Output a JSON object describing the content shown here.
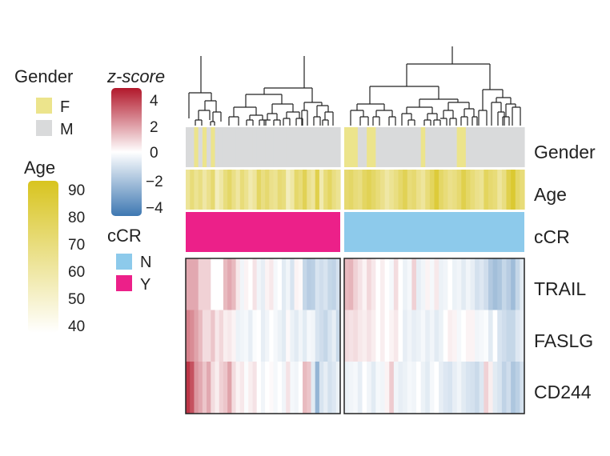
{
  "chart_data": {
    "type": "heatmap",
    "groups": [
      {
        "name": "Y",
        "n": 37
      },
      {
        "name": "N",
        "n": 40
      }
    ],
    "annotation_rows": [
      "Gender",
      "Age",
      "cCR"
    ],
    "gene_rows": [
      "TRAIL",
      "FASLG",
      "CD244"
    ],
    "legends": {
      "gender": {
        "title": "Gender",
        "items": [
          {
            "label": "F",
            "color": "#ECE48C"
          },
          {
            "label": "M",
            "color": "#D9DADB"
          }
        ]
      },
      "zscore": {
        "title": "z-score",
        "ticks": [
          "4",
          "2",
          "0",
          "−2",
          "−4"
        ],
        "range": [
          -4,
          4
        ],
        "colors": {
          "high": "#B2182B",
          "mid": "#FFFFFF",
          "low": "#3E78B2"
        }
      },
      "age": {
        "title": "Age",
        "ticks": [
          "90",
          "80",
          "70",
          "60",
          "50",
          "40"
        ],
        "range": [
          40,
          90
        ],
        "colors": {
          "high": "#D8C41F",
          "low": "#FFFFFF"
        }
      },
      "ccr": {
        "title": "cCR",
        "items": [
          {
            "label": "N",
            "color": "#8DCAEB"
          },
          {
            "label": "Y",
            "color": "#EC2089"
          }
        ]
      }
    },
    "female_columns": {
      "Y": [
        2,
        4,
        6
      ],
      "N": [
        0,
        1,
        2,
        5,
        6,
        17,
        25,
        26
      ]
    },
    "age": {
      "Y": [
        63,
        70,
        64,
        68,
        60,
        66,
        72,
        55,
        60,
        69,
        74,
        67,
        61,
        70,
        65,
        58,
        62,
        75,
        68,
        72,
        66,
        64,
        71,
        69,
        55,
        60,
        73,
        70,
        78,
        66,
        62,
        80,
        58,
        70,
        75,
        68,
        64
      ],
      "N": [
        72,
        74,
        70,
        68,
        75,
        78,
        74,
        70,
        66,
        60,
        64,
        68,
        73,
        78,
        70,
        72,
        66,
        62,
        70,
        76,
        84,
        74,
        70,
        66,
        68,
        72,
        80,
        74,
        70,
        66,
        64,
        76,
        72,
        70,
        62,
        68,
        80,
        86,
        74,
        70
      ]
    },
    "zscores": {
      "TRAIL": {
        "Y": [
          1.5,
          1.5,
          1.5,
          0.8,
          0.8,
          0.8,
          0,
          0,
          0,
          1.2,
          1.5,
          1.2,
          0.4,
          -0.3,
          0.2,
          0,
          0.5,
          -0.3,
          -0.5,
          0.2,
          0.4,
          -0.2,
          0,
          -0.6,
          -0.3,
          -0.8,
          0.2,
          0.1,
          -1.2,
          -1.5,
          -1.4,
          -0.8,
          -1.0,
          -0.8,
          -1.2,
          -1.3,
          -0.9
        ],
        "N": [
          1.2,
          1.3,
          0.8,
          0.5,
          0.2,
          0.7,
          0.4,
          0,
          0.3,
          0,
          -0.2,
          0.6,
          0,
          -0.4,
          -0.2,
          0.8,
          -0.5,
          -0.3,
          0.2,
          -0.2,
          0.4,
          -0.4,
          -0.3,
          0,
          -0.4,
          -0.3,
          -0.6,
          -0.3,
          -0.5,
          -0.9,
          -0.7,
          -1.0,
          -1.6,
          -1.9,
          -1.7,
          -1.2,
          -1.5,
          -2.0,
          -1.2,
          -0.6
        ]
      },
      "FASLG": {
        "Y": [
          2.2,
          2.0,
          1.6,
          1.2,
          0.6,
          0.6,
          1.0,
          0.4,
          0.7,
          0.3,
          0.4,
          0.2,
          -0.4,
          -0.3,
          -0.2,
          -0.5,
          -0.1,
          0,
          -0.5,
          -0.3,
          0,
          -0.2,
          -0.4,
          -0.6,
          0.1,
          -0.4,
          -0.6,
          -0.3,
          -0.6,
          -0.2,
          -0.3,
          -0.8,
          -1.0,
          -1.2,
          -0.8,
          -0.5,
          -1.1
        ],
        "N": [
          0.6,
          0.5,
          0.6,
          0.4,
          0.3,
          0.5,
          0.3,
          0,
          0.3,
          0,
          0.2,
          0.4,
          0,
          -0.5,
          -0.3,
          -0.5,
          -0.4,
          -0.2,
          -0.5,
          -0.3,
          -0.6,
          -0.4,
          0,
          0.3,
          0.2,
          -0.2,
          0,
          0.2,
          0.2,
          -0.3,
          -0.2,
          -0.1,
          -0.6,
          0,
          -0.8,
          -1.0,
          -1.2,
          -1.2,
          -0.7,
          -0.5
        ]
      },
      "CD244": {
        "Y": [
          3.5,
          3.0,
          1.8,
          1.5,
          1.0,
          1.5,
          0.6,
          0.3,
          0.8,
          1.0,
          1.6,
          0.6,
          0.2,
          0.4,
          -0.1,
          0.3,
          0.5,
          0,
          -0.3,
          0,
          0.1,
          -0.2,
          0,
          -0.3,
          0.5,
          -0.2,
          -0.3,
          0,
          1.2,
          1.0,
          -0.6,
          -2.2,
          -0.8,
          -0.5,
          -0.9,
          -0.7,
          -0.4
        ],
        "N": [
          -0.4,
          -0.3,
          -0.2,
          -0.5,
          0,
          -0.3,
          -0.6,
          -0.2,
          -0.3,
          0.2,
          0.9,
          -0.3,
          -0.5,
          -0.4,
          -0.2,
          -0.3,
          0,
          -0.4,
          -0.6,
          -0.2,
          0,
          -0.5,
          -0.7,
          -0.8,
          -0.5,
          -0.3,
          -0.6,
          -0.8,
          -0.9,
          -1.1,
          -0.7,
          0.8,
          0.3,
          -0.6,
          -0.8,
          -1.3,
          -1.0,
          -1.7,
          -1.4,
          -0.9
        ]
      }
    }
  }
}
